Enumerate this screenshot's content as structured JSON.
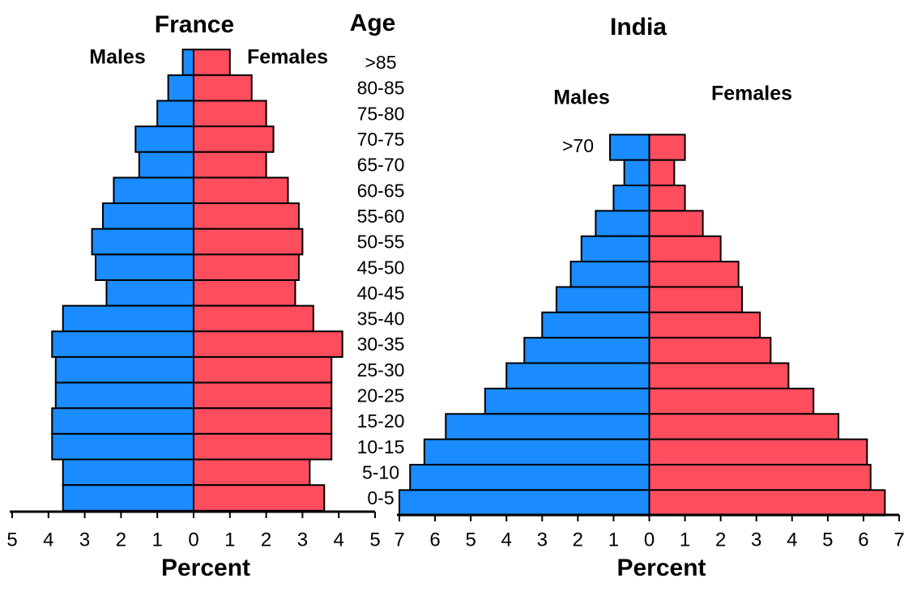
{
  "chart_data": [
    {
      "type": "pyramid",
      "title": "France",
      "ylabel": "Age",
      "xlabel": "Percent",
      "categories": [
        ">85",
        "80-85",
        "75-80",
        "70-75",
        "65-70",
        "60-65",
        "55-60",
        "50-55",
        "45-50",
        "40-45",
        "35-40",
        "30-35",
        "25-30",
        "20-25",
        "15-20",
        "10-15",
        "5-10",
        "0-5"
      ],
      "series": [
        {
          "name": "Males",
          "color": "#1a8cff",
          "side": "left",
          "values": [
            0.3,
            0.7,
            1.0,
            1.6,
            1.5,
            2.2,
            2.5,
            2.8,
            2.7,
            2.4,
            3.6,
            3.9,
            3.8,
            3.8,
            3.9,
            3.9,
            3.6,
            3.6
          ]
        },
        {
          "name": "Females",
          "color": "#ff4d5e",
          "side": "right",
          "values": [
            1.0,
            1.6,
            2.0,
            2.2,
            2.0,
            2.6,
            2.9,
            3.0,
            2.9,
            2.8,
            3.3,
            4.1,
            3.8,
            3.8,
            3.8,
            3.8,
            3.2,
            3.6
          ]
        }
      ],
      "xlim": [
        -5,
        5
      ],
      "xticks": [
        {
          "value": -5,
          "label": "5"
        },
        {
          "value": -4,
          "label": "4"
        },
        {
          "value": -3,
          "label": "3"
        },
        {
          "value": -2,
          "label": "2"
        },
        {
          "value": -1,
          "label": "1"
        },
        0,
        1,
        2,
        3,
        4,
        5
      ]
    },
    {
      "type": "pyramid",
      "title": "India",
      "xlabel": "Percent",
      "categories": [
        ">70",
        null,
        null,
        null,
        null,
        null,
        null,
        null,
        null,
        null,
        null,
        null,
        null,
        null,
        null
      ],
      "series": [
        {
          "name": "Males",
          "color": "#1a8cff",
          "side": "left",
          "values": [
            1.1,
            0.7,
            1.0,
            1.5,
            1.9,
            2.2,
            2.6,
            3.0,
            3.5,
            4.0,
            4.6,
            5.7,
            6.3,
            6.7,
            7.0
          ]
        },
        {
          "name": "Females",
          "color": "#ff4d5e",
          "side": "right",
          "values": [
            1.0,
            0.7,
            1.0,
            1.5,
            2.0,
            2.5,
            2.6,
            3.1,
            3.4,
            3.9,
            4.6,
            5.3,
            6.1,
            6.2,
            6.6
          ]
        }
      ],
      "xlim": [
        -7,
        7
      ],
      "xticks": [
        {
          "value": -7,
          "label": "7"
        },
        {
          "value": -6,
          "label": "6"
        },
        {
          "value": -5,
          "label": "5"
        },
        {
          "value": -4,
          "label": "4"
        },
        {
          "value": -3,
          "label": "3"
        },
        {
          "value": -2,
          "label": "2"
        },
        {
          "value": -1,
          "label": "1"
        },
        0,
        1,
        2,
        3,
        4,
        5,
        6,
        7
      ]
    }
  ]
}
